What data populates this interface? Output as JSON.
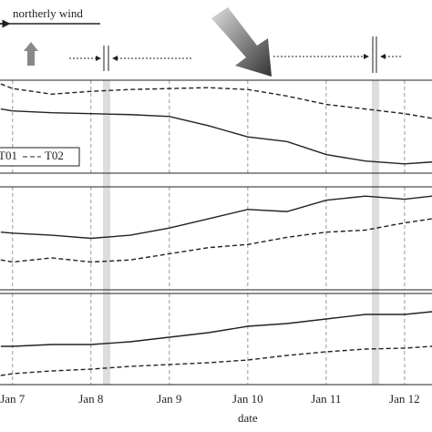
{
  "chart_data": [
    {
      "type": "line",
      "annotation": "northerly wind",
      "x": [
        6.85,
        7,
        7.5,
        8,
        8.5,
        9,
        9.5,
        10,
        10.5,
        11,
        11.5,
        12,
        12.35
      ],
      "xlim": [
        6.84,
        12.35
      ],
      "ylim": [
        0,
        100
      ],
      "legend": "lower-left",
      "series": [
        {
          "name": "T01",
          "color": "#222222",
          "style": "solid",
          "values": [
            69,
            67,
            65,
            64,
            63,
            61,
            51,
            39,
            34,
            20,
            13,
            10,
            12
          ]
        },
        {
          "name": "T02",
          "color": "#222222",
          "style": "dashed",
          "values": [
            96,
            91,
            85,
            88,
            90,
            91,
            92,
            90,
            83,
            74,
            69,
            64,
            59
          ]
        }
      ]
    },
    {
      "type": "line",
      "x": [
        6.85,
        7,
        7.5,
        8,
        8.5,
        9,
        9.5,
        10,
        10.5,
        11,
        11.5,
        12,
        12.35
      ],
      "xlim": [
        6.84,
        12.35
      ],
      "ylim": [
        0,
        100
      ],
      "series": [
        {
          "color": "#222222",
          "style": "solid",
          "values": [
            56,
            55,
            53,
            50,
            53,
            60,
            69,
            78,
            76,
            87,
            91,
            88,
            91
          ]
        },
        {
          "color": "#222222",
          "style": "dashed",
          "values": [
            29,
            27,
            31,
            27,
            29,
            35,
            41,
            44,
            51,
            56,
            58,
            65,
            69
          ]
        }
      ]
    },
    {
      "type": "line",
      "x_label": "date",
      "x": [
        6.85,
        7,
        7.5,
        8,
        8.5,
        9,
        9.5,
        10,
        10.5,
        11,
        11.5,
        12,
        12.35
      ],
      "xlim": [
        6.84,
        12.35
      ],
      "ylim": [
        0,
        100
      ],
      "xticks": [
        {
          "value": 7,
          "label": "Jan 7"
        },
        {
          "value": 8,
          "label": "Jan 8"
        },
        {
          "value": 9,
          "label": "Jan 9"
        },
        {
          "value": 10,
          "label": "Jan 10"
        },
        {
          "value": 11,
          "label": "Jan 11"
        },
        {
          "value": 12,
          "label": "Jan 12"
        }
      ],
      "series": [
        {
          "color": "#222222",
          "style": "solid",
          "values": [
            42,
            42,
            44,
            44,
            47,
            52,
            57,
            64,
            67,
            72,
            77,
            77,
            80
          ]
        },
        {
          "color": "#222222",
          "style": "dashed",
          "values": [
            10,
            12,
            15,
            17,
            20,
            22,
            24,
            27,
            32,
            36,
            39,
            40,
            42
          ]
        }
      ]
    }
  ]
}
